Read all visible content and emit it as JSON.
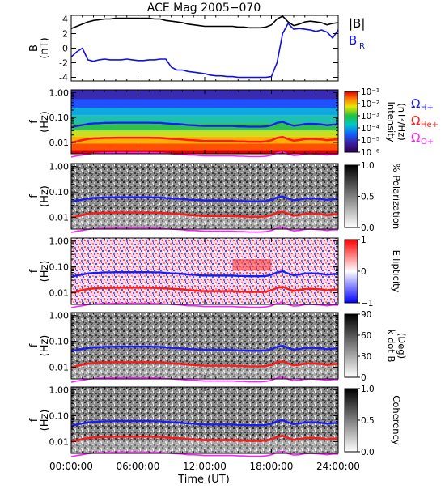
{
  "figure": {
    "title": "ACE Mag 2005−070"
  },
  "time_axis": {
    "label": "Time (UT)",
    "range": [
      0,
      24
    ],
    "tick_values": [
      0,
      6,
      12,
      18,
      24
    ],
    "tick_labels": [
      "00:00:00",
      "06:00:00",
      "12:00:00",
      "18:00:00",
      "24:00:00"
    ]
  },
  "colors": {
    "B_total": "#000000",
    "B_R": "#1010e0",
    "Omega_H": "#1a1aff",
    "Omega_He": "#ff1a1a",
    "Omega_O": "#ff20ff"
  },
  "chart_data": [
    {
      "type": "line",
      "panel": "field",
      "ylabel": [
        "B",
        "(nT)"
      ],
      "ylim": [
        -4.5,
        4.5
      ],
      "y_ticks": [
        4,
        2,
        0,
        -2,
        -4
      ],
      "legend": [
        {
          "label": "|B|",
          "color": "#000000"
        },
        {
          "label": "B",
          "sub": "R",
          "color": "#1010e0"
        }
      ],
      "x": [
        0,
        0.5,
        1,
        1.5,
        2,
        2.5,
        3,
        3.5,
        4,
        4.5,
        5,
        5.5,
        6,
        6.5,
        7,
        7.5,
        8,
        8.5,
        9,
        9.5,
        10,
        10.5,
        11,
        11.5,
        12,
        12.5,
        13,
        13.5,
        14,
        14.5,
        15,
        15.5,
        16,
        16.5,
        17,
        17.5,
        18,
        18.5,
        19,
        19.5,
        20,
        20.5,
        21,
        21.5,
        22,
        22.5,
        23,
        23.5,
        24
      ],
      "series": [
        {
          "name": "|B|",
          "values": [
            2.7,
            3.0,
            3.3,
            3.6,
            3.8,
            3.9,
            4.0,
            4.0,
            4.1,
            4.1,
            4.1,
            4.1,
            4.1,
            4.1,
            4.1,
            4.0,
            4.0,
            3.8,
            3.7,
            3.6,
            3.5,
            3.3,
            3.2,
            3.1,
            3.0,
            3.0,
            3.0,
            3.0,
            3.0,
            3.0,
            2.9,
            2.9,
            2.8,
            2.8,
            2.8,
            2.9,
            3.2,
            4.0,
            4.4,
            3.6,
            3.1,
            3.3,
            3.6,
            3.7,
            3.6,
            3.5,
            3.2,
            3.4,
            3.5
          ]
        },
        {
          "name": "B_R",
          "values": [
            -1.2,
            -0.5,
            0.0,
            -1.6,
            -1.8,
            -1.6,
            -1.5,
            -1.6,
            -1.6,
            -1.6,
            -1.5,
            -1.6,
            -1.7,
            -1.7,
            -1.6,
            -1.6,
            -1.5,
            -1.5,
            -2.6,
            -3.0,
            -3.0,
            -3.2,
            -3.3,
            -3.4,
            -3.5,
            -3.7,
            -3.8,
            -3.8,
            -3.9,
            -3.9,
            -4.0,
            -4.0,
            -4.0,
            -4.0,
            -4.0,
            -4.0,
            -3.9,
            -2.0,
            2.0,
            3.4,
            2.6,
            2.7,
            2.6,
            2.5,
            2.3,
            2.5,
            2.2,
            1.4,
            2.5
          ]
        }
      ]
    },
    {
      "type": "heatmap",
      "panel": "intensity",
      "ylabel": [
        "f",
        "(Hz)"
      ],
      "y_ticks": [
        "1.00",
        "0.10",
        "0.01"
      ],
      "colorbar": {
        "type": "rainbow",
        "label_lines": [
          "Intensity",
          "(nT²/Hz)"
        ],
        "ticks": [
          "10⁻¹",
          "10⁻²",
          "10⁻³",
          "10⁻⁴",
          "10⁻⁵",
          "10⁻⁶"
        ]
      },
      "legend": [
        {
          "sym": "Ω",
          "sub": "H+",
          "color": "#1a1aff"
        },
        {
          "sym": "Ω",
          "sub": "He+",
          "color": "#ff1a1a"
        },
        {
          "sym": "Ω",
          "sub": "O+",
          "color": "#ff20ff"
        }
      ]
    },
    {
      "type": "heatmap",
      "panel": "polarization",
      "ylabel": [
        "f",
        "(Hz)"
      ],
      "y_ticks": [
        "1.00",
        "0.10",
        "0.01"
      ],
      "colorbar": {
        "type": "gray",
        "label_lines": [
          "% Polarization"
        ],
        "ticks": [
          "1.0",
          "0.5",
          "0.0"
        ]
      }
    },
    {
      "type": "heatmap",
      "panel": "ellipticity",
      "ylabel": [
        "f",
        "(Hz)"
      ],
      "y_ticks": [
        "1.00",
        "0.10",
        "0.01"
      ],
      "colorbar": {
        "type": "bwr",
        "label_lines": [
          "Ellipticity"
        ],
        "ticks": [
          "1",
          "0",
          "−1"
        ]
      }
    },
    {
      "type": "heatmap",
      "panel": "kdotb",
      "ylabel": [
        "f",
        "(Hz)"
      ],
      "y_ticks": [
        "1.00",
        "0.10",
        "0.01"
      ],
      "colorbar": {
        "type": "gray",
        "label_lines": [
          "k dot B",
          "(Deg)"
        ],
        "ticks": [
          "90",
          "60",
          "30",
          "0"
        ]
      }
    },
    {
      "type": "heatmap",
      "panel": "coherency",
      "ylabel": [
        "f",
        "(Hz)"
      ],
      "y_ticks": [
        "1.00",
        "0.10",
        "0.01"
      ],
      "colorbar": {
        "type": "gray",
        "label_lines": [
          "Coherency"
        ],
        "ticks": [
          "1.0",
          "0.5",
          "0.0"
        ]
      }
    }
  ],
  "gyrofrequency_lines": {
    "x": [
      0,
      0.5,
      1,
      1.5,
      2,
      2.5,
      3,
      3.5,
      4,
      4.5,
      5,
      5.5,
      6,
      6.5,
      7,
      7.5,
      8,
      8.5,
      9,
      9.5,
      10,
      10.5,
      11,
      11.5,
      12,
      12.5,
      13,
      13.5,
      14,
      14.5,
      15,
      15.5,
      16,
      16.5,
      17,
      17.5,
      18,
      18.5,
      19,
      19.5,
      20,
      20.5,
      21,
      21.5,
      22,
      22.5,
      23,
      23.5,
      24
    ],
    "H+": [
      0.041,
      0.046,
      0.05,
      0.055,
      0.058,
      0.059,
      0.061,
      0.061,
      0.062,
      0.062,
      0.062,
      0.062,
      0.062,
      0.062,
      0.062,
      0.061,
      0.061,
      0.058,
      0.056,
      0.055,
      0.053,
      0.05,
      0.049,
      0.047,
      0.046,
      0.046,
      0.046,
      0.046,
      0.046,
      0.046,
      0.044,
      0.044,
      0.043,
      0.043,
      0.043,
      0.044,
      0.049,
      0.061,
      0.067,
      0.055,
      0.047,
      0.05,
      0.055,
      0.056,
      0.055,
      0.053,
      0.049,
      0.052,
      0.053
    ],
    "He+": [
      0.01,
      0.011,
      0.0125,
      0.0137,
      0.0145,
      0.0148,
      0.0152,
      0.0152,
      0.0155,
      0.0155,
      0.0155,
      0.0155,
      0.0155,
      0.0155,
      0.0155,
      0.0152,
      0.0152,
      0.0145,
      0.014,
      0.0137,
      0.0133,
      0.0125,
      0.0122,
      0.0118,
      0.0114,
      0.0114,
      0.0114,
      0.0114,
      0.0114,
      0.0114,
      0.011,
      0.011,
      0.0107,
      0.0107,
      0.0107,
      0.011,
      0.0122,
      0.0152,
      0.0167,
      0.0137,
      0.0118,
      0.0125,
      0.0137,
      0.014,
      0.0137,
      0.0133,
      0.0122,
      0.013,
      0.0133
    ],
    "O+": [
      0.0026,
      0.0029,
      0.0031,
      0.0034,
      0.0036,
      0.0037,
      0.0038,
      0.0038,
      0.0039,
      0.0039,
      0.0039,
      0.0039,
      0.0039,
      0.0039,
      0.0039,
      0.0038,
      0.0038,
      0.0036,
      0.0035,
      0.0034,
      0.0033,
      0.0031,
      0.0031,
      0.003,
      0.0029,
      0.0029,
      0.0029,
      0.0029,
      0.0029,
      0.0029,
      0.0028,
      0.0028,
      0.0027,
      0.0027,
      0.0027,
      0.0028,
      0.0031,
      0.0038,
      0.0042,
      0.0034,
      0.003,
      0.0031,
      0.0034,
      0.0035,
      0.0034,
      0.0033,
      0.0031,
      0.0033,
      0.0033
    ]
  }
}
